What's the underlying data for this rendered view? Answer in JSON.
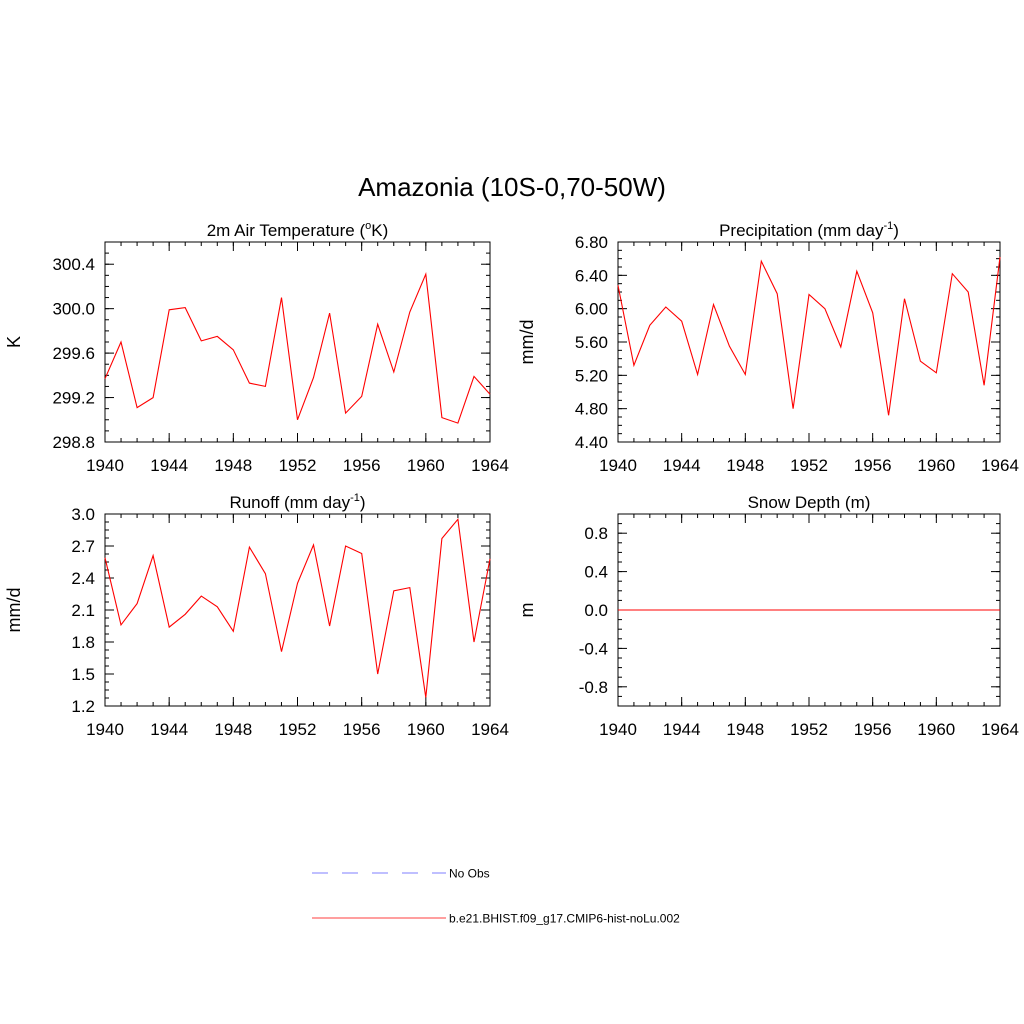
{
  "figure": {
    "title": "Amazonia (10S-0,70-50W)"
  },
  "legend": {
    "items": [
      {
        "label": "No Obs",
        "color": "#9999ff",
        "style": "dashed"
      },
      {
        "label": "b.e21.BHIST.f09_g17.CMIP6-hist-noLu.002",
        "color": "#ff6666",
        "style": "solid"
      }
    ]
  },
  "chart_data": [
    {
      "type": "line",
      "title_main": "2m Air Temperature (",
      "title_sup": "o",
      "title_end": "K)",
      "xlabel": "",
      "ylabel": "K",
      "xlim": [
        1940,
        1964
      ],
      "ylim": [
        298.8,
        300.6
      ],
      "xticks": [
        1940,
        1944,
        1948,
        1952,
        1956,
        1960,
        1964
      ],
      "yticks": [
        "298.8",
        "299.2",
        "299.6",
        "300.0",
        "300.4"
      ],
      "color": "#ff0000",
      "x": [
        1940,
        1941,
        1942,
        1943,
        1944,
        1945,
        1946,
        1947,
        1948,
        1949,
        1950,
        1951,
        1952,
        1953,
        1954,
        1955,
        1956,
        1957,
        1958,
        1959,
        1960,
        1961,
        1962,
        1963,
        1964
      ],
      "values": [
        299.37,
        299.7,
        299.11,
        299.2,
        299.99,
        300.01,
        299.71,
        299.75,
        299.63,
        299.33,
        299.3,
        300.1,
        299.0,
        299.38,
        299.96,
        299.06,
        299.21,
        299.86,
        299.43,
        299.97,
        300.31,
        299.02,
        298.97,
        299.39,
        299.23
      ]
    },
    {
      "type": "line",
      "title_main": "Precipitation (mm day",
      "title_sup": "-1",
      "title_end": ")",
      "xlabel": "",
      "ylabel": "mm/d",
      "xlim": [
        1940,
        1964
      ],
      "ylim": [
        4.4,
        6.8
      ],
      "xticks": [
        1940,
        1944,
        1948,
        1952,
        1956,
        1960,
        1964
      ],
      "yticks": [
        "4.40",
        "4.80",
        "5.20",
        "5.60",
        "6.00",
        "6.40",
        "6.80"
      ],
      "color": "#ff0000",
      "x": [
        1940,
        1941,
        1942,
        1943,
        1944,
        1945,
        1946,
        1947,
        1948,
        1949,
        1950,
        1951,
        1952,
        1953,
        1954,
        1955,
        1956,
        1957,
        1958,
        1959,
        1960,
        1961,
        1962,
        1963,
        1964
      ],
      "values": [
        6.28,
        5.32,
        5.8,
        6.02,
        5.85,
        5.21,
        6.05,
        5.55,
        5.21,
        6.57,
        6.18,
        4.8,
        6.17,
        6.0,
        5.54,
        6.45,
        5.95,
        4.72,
        6.12,
        5.37,
        5.23,
        6.42,
        6.2,
        5.08,
        6.62
      ]
    },
    {
      "type": "line",
      "title_main": "Runoff (mm day",
      "title_sup": "-1",
      "title_end": ")",
      "xlabel": "",
      "ylabel": "mm/d",
      "xlim": [
        1940,
        1964
      ],
      "ylim": [
        1.2,
        3.0
      ],
      "xticks": [
        1940,
        1944,
        1948,
        1952,
        1956,
        1960,
        1964
      ],
      "yticks": [
        "1.2",
        "1.5",
        "1.8",
        "2.1",
        "2.4",
        "2.7",
        "3.0"
      ],
      "color": "#ff0000",
      "x": [
        1940,
        1941,
        1942,
        1943,
        1944,
        1945,
        1946,
        1947,
        1948,
        1949,
        1950,
        1951,
        1952,
        1953,
        1954,
        1955,
        1956,
        1957,
        1958,
        1959,
        1960,
        1961,
        1962,
        1963,
        1964
      ],
      "values": [
        2.59,
        1.96,
        2.16,
        2.61,
        1.94,
        2.06,
        2.23,
        2.13,
        1.9,
        2.69,
        2.44,
        1.71,
        2.35,
        2.71,
        1.95,
        2.7,
        2.63,
        1.5,
        2.28,
        2.31,
        1.28,
        2.77,
        2.95,
        1.8,
        2.58
      ]
    },
    {
      "type": "line",
      "title_main": "Snow Depth (m)",
      "title_sup": "",
      "title_end": "",
      "xlabel": "",
      "ylabel": "m",
      "xlim": [
        1940,
        1964
      ],
      "ylim": [
        -1.0,
        1.0
      ],
      "xticks": [
        1940,
        1944,
        1948,
        1952,
        1956,
        1960,
        1964
      ],
      "yticks": [
        "-0.8",
        "-0.4",
        "0.0",
        "0.4",
        "0.8"
      ],
      "color": "#ff0000",
      "x": [
        1940,
        1941,
        1942,
        1943,
        1944,
        1945,
        1946,
        1947,
        1948,
        1949,
        1950,
        1951,
        1952,
        1953,
        1954,
        1955,
        1956,
        1957,
        1958,
        1959,
        1960,
        1961,
        1962,
        1963,
        1964
      ],
      "values": [
        0,
        0,
        0,
        0,
        0,
        0,
        0,
        0,
        0,
        0,
        0,
        0,
        0,
        0,
        0,
        0,
        0,
        0,
        0,
        0,
        0,
        0,
        0,
        0,
        0
      ]
    }
  ]
}
